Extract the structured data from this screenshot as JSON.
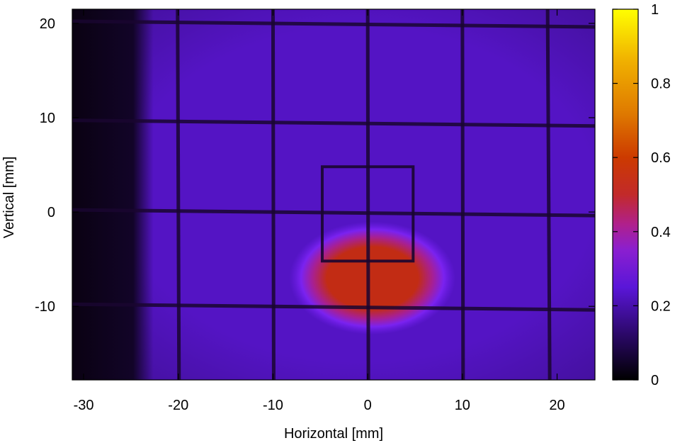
{
  "chart_data": {
    "type": "heatmap",
    "title": "",
    "xlabel": "Horizontal [mm]",
    "ylabel": "Vertical [mm]",
    "xlim": [
      -31.2,
      24
    ],
    "ylim": [
      -17.8,
      21.5
    ],
    "xticks": [
      -30,
      -20,
      -10,
      0,
      10,
      20
    ],
    "yticks": [
      -10,
      0,
      10,
      20
    ],
    "colorbar": {
      "range": [
        0,
        1
      ],
      "ticks": [
        0,
        0.2,
        0.4,
        0.6,
        0.8,
        1
      ],
      "colormap": [
        "#000000",
        "#3b0f8f",
        "#7a1fe0",
        "#b01ea0",
        "#c82814",
        "#e07a00",
        "#f5c400",
        "#ffff00"
      ]
    },
    "grid_lines": {
      "vertical_x": [
        -20,
        -10,
        0,
        10,
        19
      ],
      "horizontal_y": [
        20,
        9.5,
        0,
        -10
      ]
    },
    "inner_frame": {
      "x": [
        -4.8,
        4.8
      ],
      "y": [
        -5.2,
        4.8
      ]
    },
    "hotspot": {
      "center": [
        0.5,
        -7
      ],
      "half_width": [
        6.5,
        4
      ],
      "peak_value": 0.52
    },
    "background_level": 0.17,
    "dark_band_x": [
      -31.2,
      -24.5
    ]
  }
}
